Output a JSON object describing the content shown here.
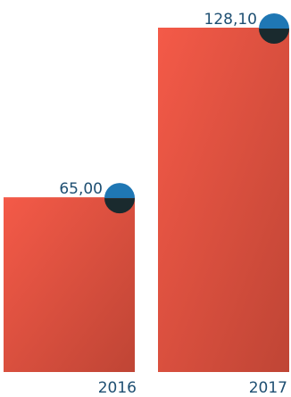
{
  "chart_data": {
    "type": "bar",
    "categories": [
      "2016",
      "2017"
    ],
    "values": [
      65.0,
      128.1
    ],
    "value_labels": [
      "65,00",
      "128,10"
    ],
    "title": "",
    "xlabel": "",
    "ylabel": "",
    "ylim": [
      0,
      128.1
    ],
    "grid": false,
    "legend": "none"
  },
  "colors": {
    "bar_top_left": "#f45a48",
    "bar_bottom_right": "#bf4535",
    "marker_top": "#1f77b4",
    "marker_bottom": "#1a2a2e",
    "text": "#1e4f72"
  }
}
